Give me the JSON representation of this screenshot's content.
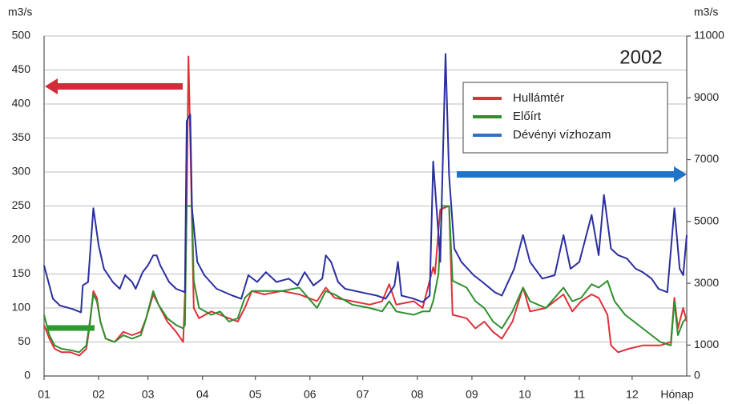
{
  "chart_data": {
    "type": "line",
    "left_unit": "m3/s",
    "right_unit": "m3/s",
    "xlabel": "Hónap",
    "annotation": "2002",
    "legend": "upper right",
    "grid": true,
    "xlim": [
      0,
      365
    ],
    "xticks": [
      {
        "value": 0,
        "label": "01"
      },
      {
        "value": 31,
        "label": "02"
      },
      {
        "value": 59,
        "label": "03"
      },
      {
        "value": 90,
        "label": "04"
      },
      {
        "value": 120,
        "label": "05"
      },
      {
        "value": 151,
        "label": "06"
      },
      {
        "value": 181,
        "label": "07"
      },
      {
        "value": 212,
        "label": "08"
      },
      {
        "value": 243,
        "label": "09"
      },
      {
        "value": 273,
        "label": "10"
      },
      {
        "value": 304,
        "label": "11"
      },
      {
        "value": 334,
        "label": "12"
      }
    ],
    "ylim": [
      0,
      500
    ],
    "yticks": [
      0,
      50,
      100,
      150,
      200,
      250,
      300,
      350,
      400,
      450,
      500
    ],
    "y2lim": [
      0,
      11000
    ],
    "y2ticks": [
      0,
      1000,
      3000,
      5000,
      7000,
      9000,
      11000
    ],
    "series": [
      {
        "name": "Hullámtér",
        "color": "#e0303a",
        "x": [
          0,
          3,
          6,
          10,
          15,
          20,
          24,
          26,
          28,
          30,
          32,
          35,
          40,
          45,
          50,
          55,
          58,
          62,
          65,
          70,
          75,
          79,
          80,
          81,
          82,
          83,
          85,
          88,
          95,
          100,
          105,
          110,
          114,
          118,
          125,
          135,
          145,
          155,
          160,
          165,
          175,
          185,
          192,
          196,
          200,
          210,
          215,
          219,
          221,
          222,
          225,
          230,
          232,
          240,
          245,
          250,
          255,
          260,
          266,
          272,
          276,
          285,
          295,
          300,
          305,
          311,
          315,
          320,
          322,
          326,
          332,
          340,
          350,
          356,
          358,
          360,
          363,
          365
        ],
        "values": [
          75,
          55,
          40,
          35,
          35,
          30,
          40,
          75,
          125,
          115,
          80,
          55,
          50,
          65,
          60,
          65,
          85,
          120,
          105,
          80,
          65,
          50,
          120,
          250,
          470,
          350,
          100,
          85,
          95,
          90,
          85,
          80,
          100,
          125,
          120,
          125,
          120,
          110,
          130,
          115,
          110,
          105,
          110,
          135,
          105,
          110,
          100,
          140,
          160,
          150,
          245,
          250,
          90,
          85,
          70,
          80,
          65,
          55,
          80,
          130,
          95,
          100,
          120,
          95,
          110,
          120,
          115,
          90,
          45,
          35,
          40,
          45,
          45,
          50,
          115,
          70,
          100,
          80
        ]
      },
      {
        "name": "Előírt",
        "color": "#2e8f2e",
        "x": [
          0,
          3,
          6,
          10,
          15,
          20,
          24,
          26,
          28,
          30,
          32,
          35,
          40,
          45,
          50,
          55,
          58,
          62,
          65,
          70,
          75,
          79,
          80,
          81,
          84,
          85,
          88,
          95,
          100,
          105,
          110,
          114,
          118,
          125,
          135,
          145,
          155,
          160,
          165,
          175,
          185,
          192,
          196,
          200,
          210,
          215,
          219,
          221,
          224,
          226,
          230,
          232,
          240,
          245,
          250,
          255,
          260,
          266,
          272,
          276,
          285,
          295,
          300,
          305,
          311,
          315,
          320,
          324,
          330,
          340,
          350,
          356,
          358,
          360,
          363,
          365
        ],
        "values": [
          90,
          60,
          45,
          40,
          38,
          35,
          45,
          80,
          120,
          110,
          80,
          55,
          50,
          60,
          55,
          60,
          85,
          125,
          105,
          85,
          75,
          70,
          75,
          250,
          250,
          140,
          100,
          90,
          95,
          80,
          85,
          115,
          125,
          125,
          125,
          130,
          100,
          125,
          120,
          105,
          100,
          95,
          110,
          95,
          90,
          95,
          95,
          110,
          150,
          250,
          250,
          140,
          130,
          110,
          100,
          80,
          70,
          95,
          130,
          110,
          100,
          130,
          110,
          115,
          135,
          130,
          140,
          110,
          90,
          70,
          50,
          45,
          110,
          60,
          80,
          85
        ]
      },
      {
        "name": "Dévényi vízhozam",
        "color": "#2b2f9e",
        "axis": "y2",
        "x": [
          0,
          5,
          9,
          16,
          21,
          22,
          25,
          28,
          31,
          34,
          39,
          43,
          46,
          50,
          52,
          56,
          59,
          62,
          64,
          66,
          71,
          75,
          80,
          81,
          83,
          84,
          87,
          91,
          98,
          107,
          112,
          116,
          121,
          126,
          132,
          139,
          144,
          148,
          153,
          158,
          160,
          163,
          167,
          171,
          180,
          189,
          194,
          199,
          201,
          203,
          210,
          215,
          219,
          221,
          224,
          225,
          228,
          230,
          233,
          237,
          244,
          249,
          256,
          260,
          267,
          272,
          276,
          283,
          290,
          295,
          299,
          304,
          311,
          315,
          318,
          322,
          326,
          331,
          336,
          340,
          345,
          349,
          354,
          358,
          361,
          363,
          365
        ],
        "values": [
          3580,
          2500,
          2280,
          2170,
          2060,
          2930,
          3040,
          5430,
          4230,
          3470,
          3040,
          2820,
          3260,
          3040,
          2820,
          3360,
          3580,
          3900,
          3900,
          3580,
          3040,
          2820,
          2710,
          8250,
          8460,
          5430,
          3690,
          3260,
          2820,
          2600,
          2500,
          3260,
          3040,
          3360,
          3040,
          3150,
          2930,
          3360,
          2930,
          3150,
          3900,
          3690,
          3040,
          2820,
          2710,
          2600,
          2500,
          2930,
          3690,
          2600,
          2500,
          2390,
          2600,
          6940,
          4560,
          3690,
          10420,
          6510,
          4120,
          3690,
          3260,
          3040,
          2710,
          2600,
          3470,
          4560,
          3690,
          3150,
          3260,
          4560,
          3470,
          3690,
          5210,
          3910,
          5860,
          4120,
          3910,
          3800,
          3470,
          3360,
          3150,
          2820,
          2710,
          5430,
          3470,
          3260,
          4560
        ]
      }
    ]
  }
}
